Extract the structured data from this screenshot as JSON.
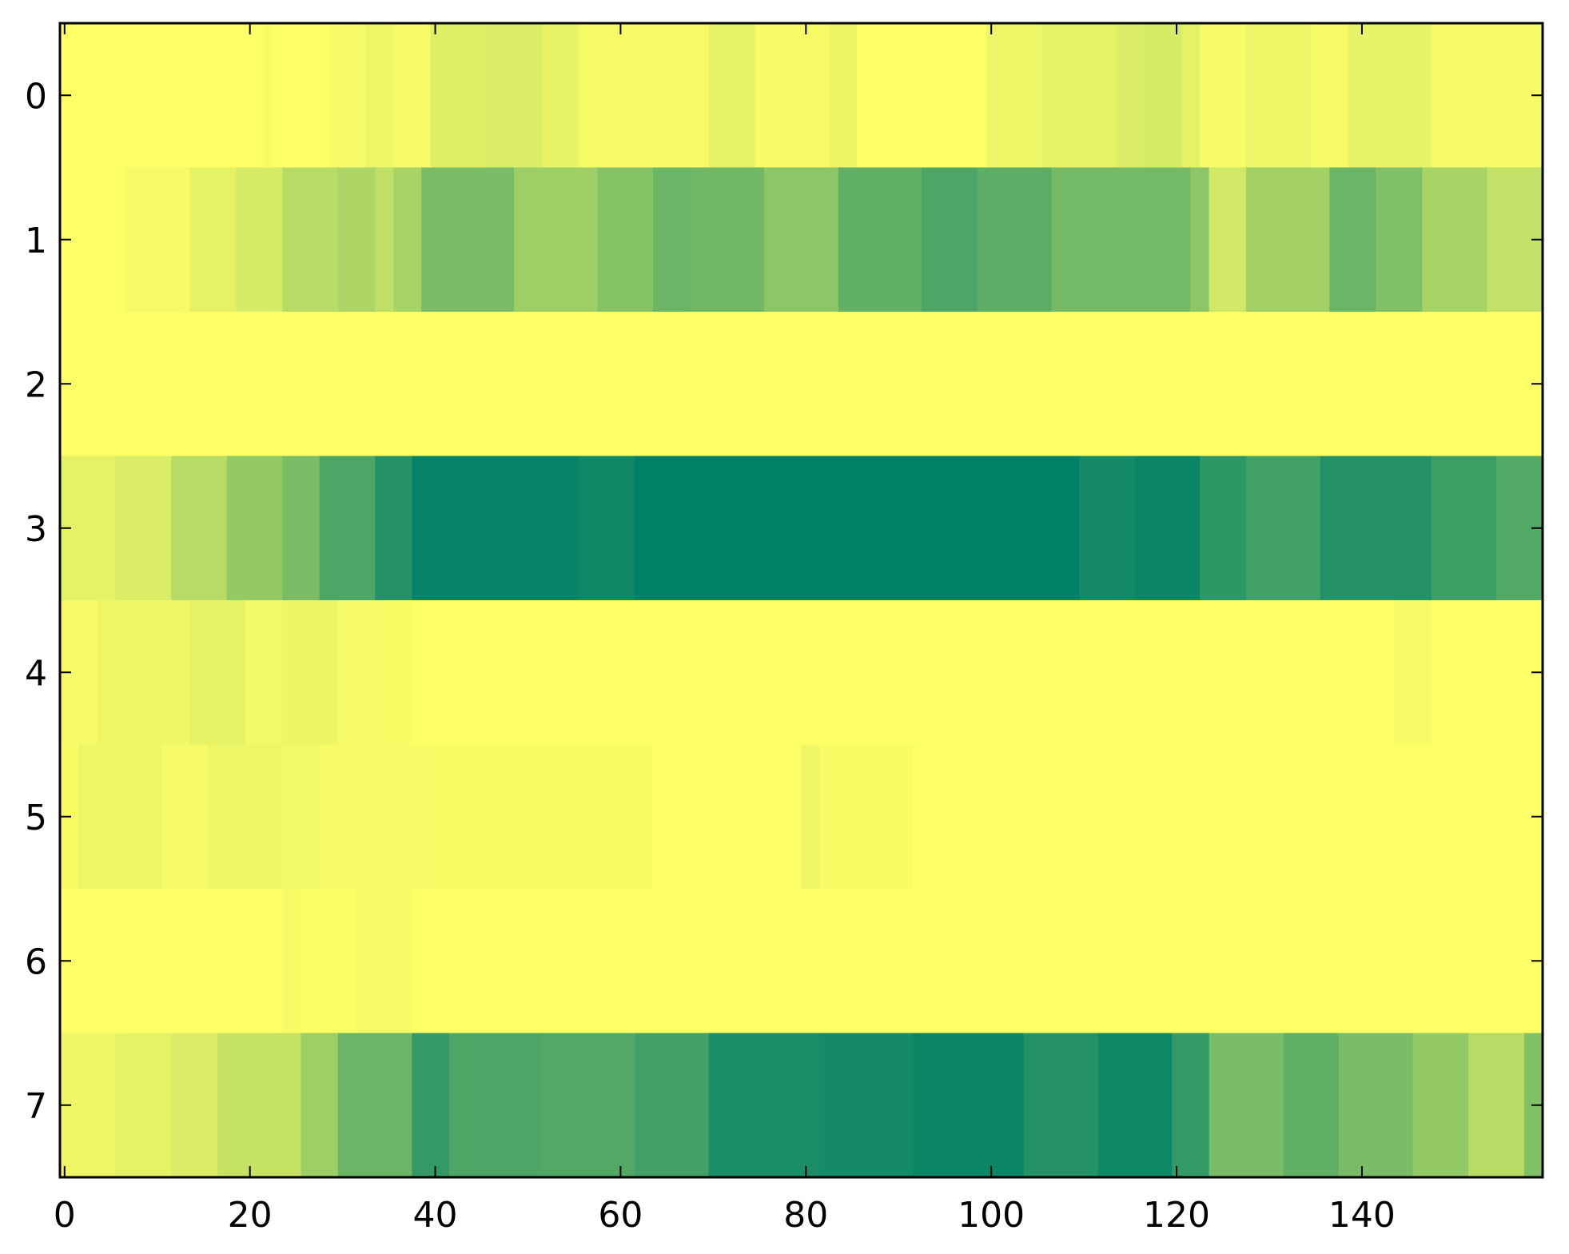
{
  "chart_data": {
    "type": "heatmap",
    "title": "",
    "xlabel": "",
    "ylabel": "",
    "colormap": "summer",
    "color_low": "#008066",
    "color_high": "#ffff66",
    "value_range": [
      0,
      1
    ],
    "x_range": [
      -0.5,
      159.5
    ],
    "y_range": [
      -0.5,
      7.5
    ],
    "grid": false,
    "x_ticks": [
      0,
      20,
      40,
      60,
      80,
      100,
      120,
      140
    ],
    "y_ticks": [
      0,
      1,
      2,
      3,
      4,
      5,
      6,
      7
    ],
    "rows": [
      {
        "row": 0,
        "segments": [
          [
            0,
            22,
            1.0
          ],
          [
            22,
            23,
            0.97
          ],
          [
            23,
            29,
            1.0
          ],
          [
            29,
            33,
            0.96
          ],
          [
            33,
            36,
            0.93
          ],
          [
            36,
            40,
            0.96
          ],
          [
            40,
            46,
            0.88
          ],
          [
            46,
            52,
            0.86
          ],
          [
            52,
            56,
            0.91
          ],
          [
            56,
            70,
            0.97
          ],
          [
            70,
            75,
            0.9
          ],
          [
            75,
            83,
            0.97
          ],
          [
            83,
            86,
            0.92
          ],
          [
            86,
            100,
            1.0
          ],
          [
            100,
            106,
            0.93
          ],
          [
            106,
            114,
            0.9
          ],
          [
            114,
            117,
            0.86
          ],
          [
            117,
            121,
            0.84
          ],
          [
            121,
            123,
            0.9
          ],
          [
            123,
            128,
            0.97
          ],
          [
            128,
            135,
            0.93
          ],
          [
            135,
            139,
            0.97
          ],
          [
            139,
            148,
            0.91
          ],
          [
            148,
            160,
            0.97
          ]
        ]
      },
      {
        "row": 1,
        "segments": [
          [
            0,
            7,
            1.0
          ],
          [
            7,
            14,
            0.97
          ],
          [
            14,
            19,
            0.9
          ],
          [
            19,
            24,
            0.84
          ],
          [
            24,
            30,
            0.72
          ],
          [
            30,
            34,
            0.68
          ],
          [
            34,
            36,
            0.75
          ],
          [
            36,
            39,
            0.66
          ],
          [
            39,
            49,
            0.48
          ],
          [
            49,
            58,
            0.62
          ],
          [
            58,
            64,
            0.52
          ],
          [
            64,
            68,
            0.42
          ],
          [
            68,
            76,
            0.44
          ],
          [
            76,
            84,
            0.55
          ],
          [
            84,
            93,
            0.38
          ],
          [
            93,
            99,
            0.3
          ],
          [
            99,
            107,
            0.36
          ],
          [
            107,
            122,
            0.46
          ],
          [
            122,
            124,
            0.55
          ],
          [
            124,
            128,
            0.82
          ],
          [
            128,
            137,
            0.64
          ],
          [
            137,
            142,
            0.42
          ],
          [
            142,
            147,
            0.5
          ],
          [
            147,
            154,
            0.66
          ],
          [
            154,
            160,
            0.76
          ]
        ]
      },
      {
        "row": 2,
        "segments": [
          [
            0,
            160,
            1.0
          ]
        ]
      },
      {
        "row": 3,
        "segments": [
          [
            0,
            6,
            0.9
          ],
          [
            6,
            12,
            0.86
          ],
          [
            12,
            18,
            0.72
          ],
          [
            18,
            24,
            0.58
          ],
          [
            24,
            28,
            0.48
          ],
          [
            28,
            34,
            0.3
          ],
          [
            34,
            38,
            0.14
          ],
          [
            38,
            56,
            0.02
          ],
          [
            56,
            62,
            0.06
          ],
          [
            62,
            72,
            0.0
          ],
          [
            72,
            100,
            0.0
          ],
          [
            100,
            110,
            0.0
          ],
          [
            110,
            116,
            0.08
          ],
          [
            116,
            123,
            0.04
          ],
          [
            123,
            128,
            0.18
          ],
          [
            128,
            136,
            0.26
          ],
          [
            136,
            148,
            0.14
          ],
          [
            148,
            155,
            0.24
          ],
          [
            155,
            160,
            0.32
          ]
        ]
      },
      {
        "row": 4,
        "segments": [
          [
            0,
            4,
            0.96
          ],
          [
            4,
            14,
            0.94
          ],
          [
            14,
            20,
            0.9
          ],
          [
            20,
            24,
            0.95
          ],
          [
            24,
            30,
            0.92
          ],
          [
            30,
            34,
            0.96
          ],
          [
            34,
            38,
            0.98
          ],
          [
            38,
            144,
            1.0
          ],
          [
            144,
            148,
            0.97
          ],
          [
            148,
            160,
            1.0
          ]
        ]
      },
      {
        "row": 5,
        "segments": [
          [
            0,
            2,
            0.98
          ],
          [
            2,
            11,
            0.93
          ],
          [
            11,
            16,
            0.96
          ],
          [
            16,
            24,
            0.93
          ],
          [
            24,
            28,
            0.95
          ],
          [
            28,
            40,
            0.97
          ],
          [
            40,
            64,
            0.98
          ],
          [
            64,
            80,
            1.0
          ],
          [
            80,
            82,
            0.94
          ],
          [
            82,
            92,
            0.98
          ],
          [
            92,
            160,
            1.0
          ]
        ]
      },
      {
        "row": 6,
        "segments": [
          [
            0,
            24,
            1.0
          ],
          [
            24,
            26,
            0.97
          ],
          [
            26,
            32,
            0.99
          ],
          [
            32,
            38,
            0.97
          ],
          [
            38,
            160,
            1.0
          ]
        ]
      },
      {
        "row": 7,
        "segments": [
          [
            0,
            6,
            0.94
          ],
          [
            6,
            12,
            0.9
          ],
          [
            12,
            17,
            0.86
          ],
          [
            17,
            26,
            0.78
          ],
          [
            26,
            30,
            0.62
          ],
          [
            30,
            38,
            0.42
          ],
          [
            38,
            42,
            0.2
          ],
          [
            42,
            52,
            0.3
          ],
          [
            52,
            62,
            0.32
          ],
          [
            62,
            70,
            0.26
          ],
          [
            70,
            82,
            0.1
          ],
          [
            82,
            92,
            0.08
          ],
          [
            92,
            104,
            0.04
          ],
          [
            104,
            112,
            0.14
          ],
          [
            112,
            120,
            0.06
          ],
          [
            120,
            124,
            0.2
          ],
          [
            124,
            132,
            0.48
          ],
          [
            132,
            138,
            0.38
          ],
          [
            138,
            146,
            0.48
          ],
          [
            146,
            152,
            0.58
          ],
          [
            152,
            158,
            0.72
          ],
          [
            158,
            160,
            0.5
          ]
        ]
      }
    ]
  }
}
